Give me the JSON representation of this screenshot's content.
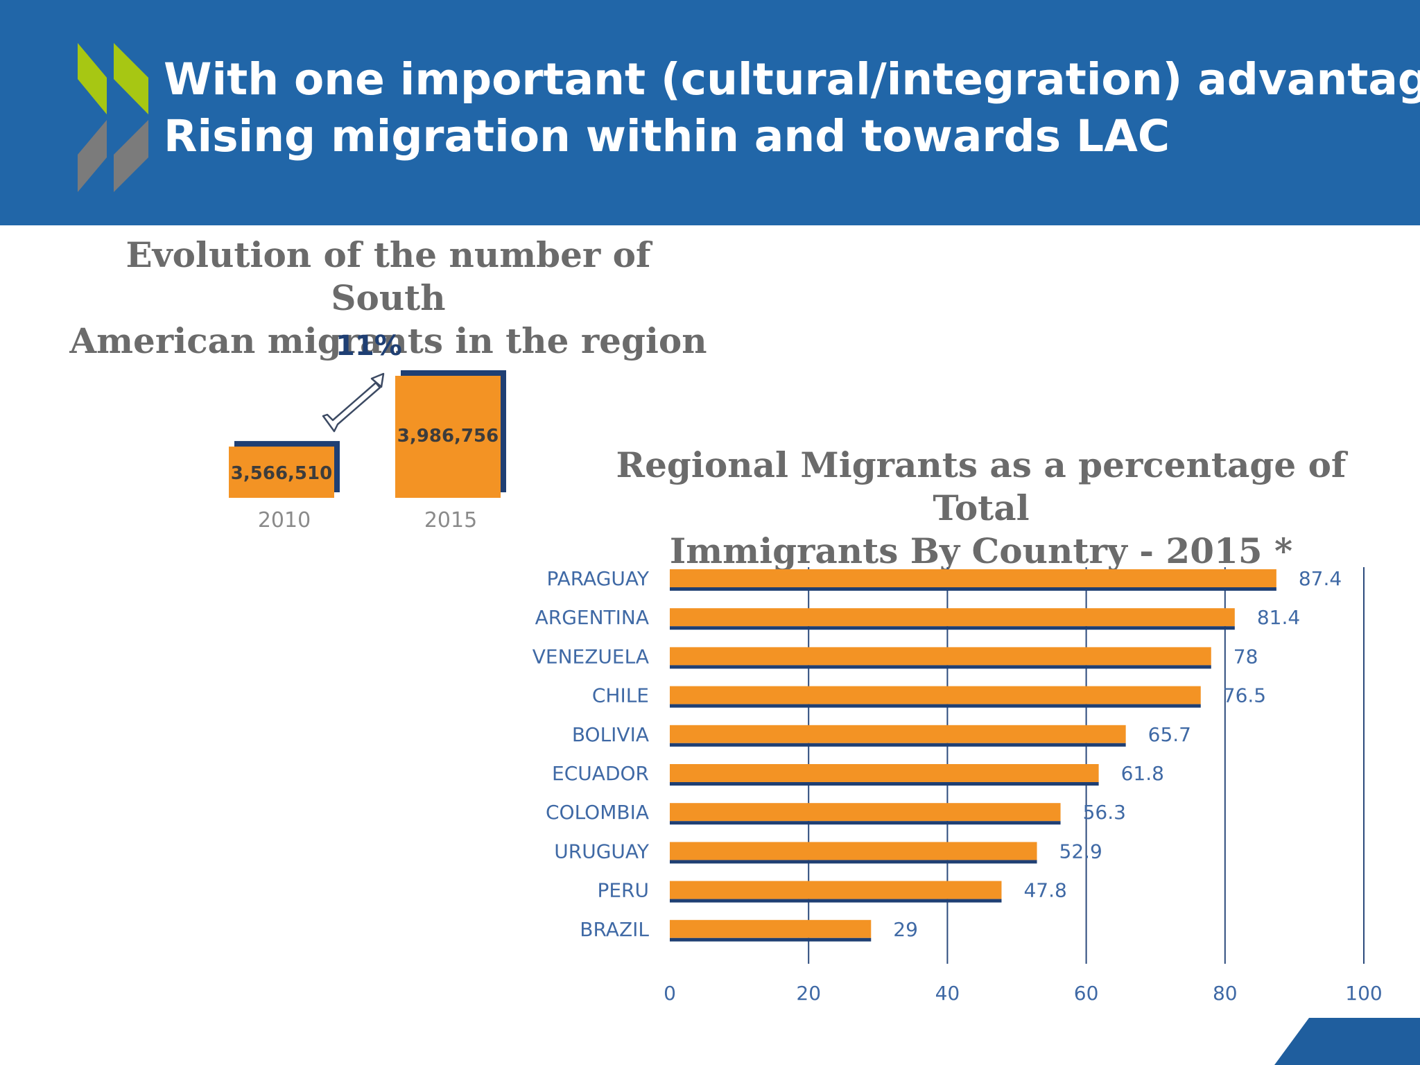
{
  "header": {
    "title_line1": "With one important (cultural/integration) advantage:",
    "title_line2": "Rising migration within and towards LAC"
  },
  "left_panel": {
    "title_line1": "Evolution of the number of South",
    "title_line2": "American migrants in the region"
  },
  "right_panel": {
    "title_line1": "Regional Migrants as a percentage of Total",
    "title_line2": "Immigrants By Country - 2015 *"
  },
  "colors": {
    "header_bg": "#2166a8",
    "bar_orange": "#f39324",
    "bar_shadow": "#1f3f73",
    "axis_navy": "#2b4a7c",
    "label_blue": "#3f69a5",
    "logo_green": "#a7c713",
    "logo_gray": "#7b7b7b"
  },
  "chart_data": [
    {
      "type": "bar",
      "orientation": "vertical",
      "categories": [
        "2010",
        "2015"
      ],
      "values": [
        3566510,
        3986756
      ],
      "value_labels": [
        "3,566,510",
        "3,986,756"
      ],
      "annotation": "11%",
      "annotation_icon": "arrow-up-right-icon"
    },
    {
      "type": "bar",
      "orientation": "horizontal",
      "categories": [
        "PARAGUAY",
        "ARGENTINA",
        "VENEZUELA",
        "CHILE",
        "BOLIVIA",
        "ECUADOR",
        "COLOMBIA",
        "URUGUAY",
        "PERU",
        "BRAZIL"
      ],
      "values": [
        87.4,
        81.4,
        78,
        76.5,
        65.7,
        61.8,
        56.3,
        52.9,
        47.8,
        29
      ],
      "value_labels": [
        "87.4",
        "81.4",
        "78",
        "76.5",
        "65.7",
        "61.8",
        "56.3",
        "52.9",
        "47.8",
        "29"
      ],
      "xlim": [
        0,
        100
      ],
      "xticks": [
        0,
        20,
        40,
        60,
        80,
        100
      ],
      "xtick_labels": [
        "0",
        "20",
        "40",
        "60",
        "80",
        "100"
      ],
      "grid": true
    }
  ]
}
